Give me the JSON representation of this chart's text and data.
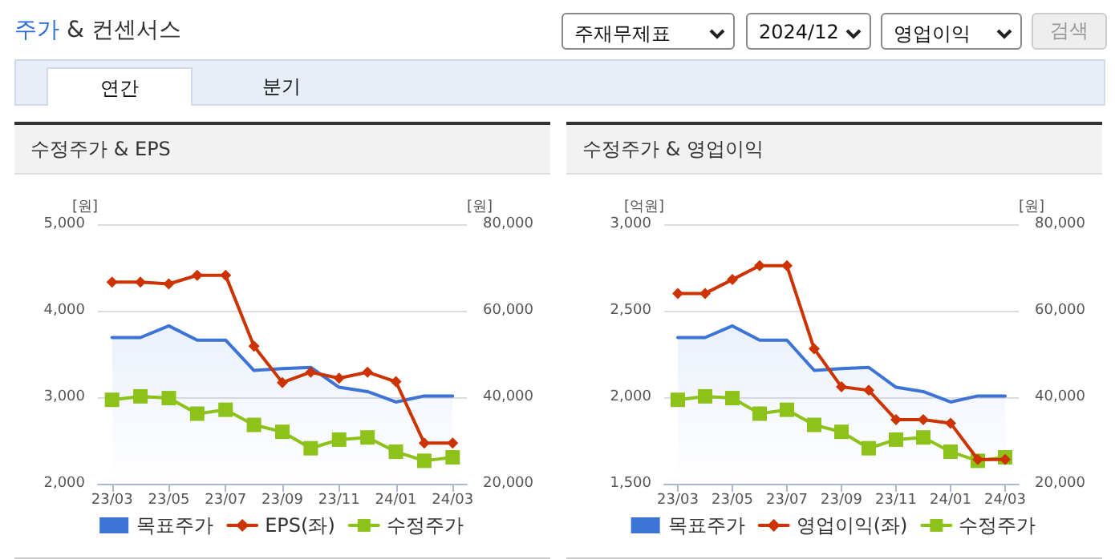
{
  "chart_data": [
    {
      "type": "line",
      "title": "수정주가 & EPS",
      "annotations": [
        "주가 & 컨센서스",
        "주재무제표",
        "2024/12",
        "영업이익",
        "검색",
        "연간",
        "분기"
      ],
      "ylabel": "[원]",
      "y2label": "[원]",
      "categories": [
        "23/03",
        null,
        "23/05",
        null,
        "23/07",
        null,
        "23/09",
        null,
        "23/11",
        null,
        "24/01",
        null,
        "24/03"
      ],
      "series": [
        {
          "name": "목표주가",
          "type": "area",
          "axis": "y2",
          "marker": "none",
          "color": "#3b73d6",
          "values": [
            53800,
            53800,
            56500,
            53200,
            53200,
            46200,
            46600,
            46900,
            42300,
            41300,
            38900,
            40300,
            40300
          ]
        },
        {
          "name": "EPS(좌)",
          "type": "line",
          "marker": "diamond",
          "color": "#cc3300",
          "values": [
            4330,
            4330,
            4310,
            4410,
            4410,
            3590,
            3170,
            3290,
            3220,
            3290,
            3180,
            2470,
            2470
          ]
        },
        {
          "name": "수정주가",
          "type": "line",
          "axis": "y2",
          "marker": "square",
          "color": "#8cc21a",
          "values": [
            39400,
            40200,
            39800,
            36200,
            37100,
            33600,
            32000,
            28200,
            30200,
            30700,
            27400,
            25300,
            26100
          ]
        }
      ],
      "ylim": [
        2000,
        5000
      ],
      "yticks": [
        {
          "value": 2000,
          "label": "2,000"
        },
        {
          "value": 3000,
          "label": "3,000"
        },
        {
          "value": 4000,
          "label": "4,000"
        },
        {
          "value": 5000,
          "label": "5,000"
        }
      ],
      "y2lim": [
        20000,
        80000
      ],
      "y2ticks": [
        {
          "value": 20000,
          "label": "20,000"
        },
        {
          "value": 40000,
          "label": "40,000"
        },
        {
          "value": 60000,
          "label": "60,000"
        },
        {
          "value": 80000,
          "label": "80,000"
        }
      ],
      "grid": "y",
      "legend": "bottom"
    },
    {
      "type": "line",
      "title": "수정주가 & 영업이익",
      "ylabel": "[억원]",
      "y2label": "[원]",
      "categories": [
        "23/03",
        null,
        "23/05",
        null,
        "23/07",
        null,
        "23/09",
        null,
        "23/11",
        null,
        "24/01",
        null,
        "24/03"
      ],
      "series": [
        {
          "name": "목표주가",
          "type": "area",
          "axis": "y2",
          "marker": "none",
          "color": "#3b73d6",
          "values": [
            53800,
            53800,
            56500,
            53200,
            53200,
            46200,
            46600,
            46900,
            42300,
            41300,
            38900,
            40300,
            40300
          ]
        },
        {
          "name": "영업이익(좌)",
          "type": "line",
          "marker": "diamond",
          "color": "#cc3300",
          "values": [
            2600,
            2600,
            2680,
            2760,
            2760,
            2280,
            2060,
            2040,
            1870,
            1870,
            1850,
            1640,
            1640
          ]
        },
        {
          "name": "수정주가",
          "type": "line",
          "axis": "y2",
          "marker": "square",
          "color": "#8cc21a",
          "values": [
            39400,
            40200,
            39800,
            36200,
            37100,
            33600,
            32000,
            28200,
            30200,
            30700,
            27400,
            25300,
            26100
          ]
        }
      ],
      "ylim": [
        1500,
        3000
      ],
      "yticks": [
        {
          "value": 1500,
          "label": "1,500"
        },
        {
          "value": 2000,
          "label": "2,000"
        },
        {
          "value": 2500,
          "label": "2,500"
        },
        {
          "value": 3000,
          "label": "3,000"
        }
      ],
      "y2lim": [
        20000,
        80000
      ],
      "y2ticks": [
        {
          "value": 20000,
          "label": "20,000"
        },
        {
          "value": 40000,
          "label": "40,000"
        },
        {
          "value": 60000,
          "label": "60,000"
        },
        {
          "value": 80000,
          "label": "80,000"
        }
      ],
      "grid": "y",
      "legend": "bottom"
    }
  ]
}
